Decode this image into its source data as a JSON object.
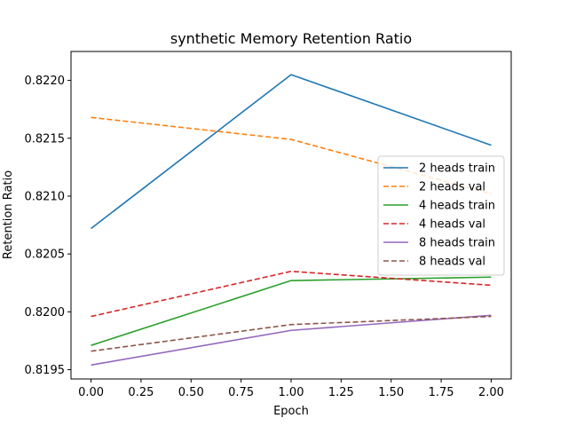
{
  "chart_data": {
    "type": "line",
    "title": "synthetic Memory Retention Ratio",
    "xlabel": "Epoch",
    "ylabel": "Retention Ratio",
    "x": [
      0.0,
      1.0,
      2.0
    ],
    "xlim": [
      -0.1,
      2.1
    ],
    "ylim": [
      0.81942,
      0.82225
    ],
    "xticks": [
      0.0,
      0.25,
      0.5,
      0.75,
      1.0,
      1.25,
      1.5,
      1.75,
      2.0
    ],
    "xtick_labels": [
      "0.00",
      "0.25",
      "0.50",
      "0.75",
      "1.00",
      "1.25",
      "1.50",
      "1.75",
      "2.00"
    ],
    "yticks": [
      0.8195,
      0.82,
      0.8205,
      0.821,
      0.8215,
      0.822
    ],
    "ytick_labels": [
      "0.8195",
      "0.8200",
      "0.8205",
      "0.8210",
      "0.8215",
      "0.8220"
    ],
    "grid": false,
    "legend_position": "center-right",
    "series": [
      {
        "name": "2 heads train",
        "values": [
          0.82072,
          0.82205,
          0.82144
        ],
        "color": "#1f77b4",
        "dash": "solid"
      },
      {
        "name": "2 heads val",
        "values": [
          0.82168,
          0.82149,
          0.82102
        ],
        "color": "#ff7f0e",
        "dash": "dashed"
      },
      {
        "name": "4 heads train",
        "values": [
          0.81971,
          0.82027,
          0.8203
        ],
        "color": "#2ca02c",
        "dash": "solid"
      },
      {
        "name": "4 heads val",
        "values": [
          0.81996,
          0.82035,
          0.82023
        ],
        "color": "#d62728",
        "dash": "dashed"
      },
      {
        "name": "8 heads train",
        "values": [
          0.81954,
          0.81984,
          0.81997
        ],
        "color": "#9467bd",
        "dash": "solid"
      },
      {
        "name": "8 heads val",
        "values": [
          0.81966,
          0.81989,
          0.81996
        ],
        "color": "#8c564b",
        "dash": "dashed"
      }
    ]
  }
}
